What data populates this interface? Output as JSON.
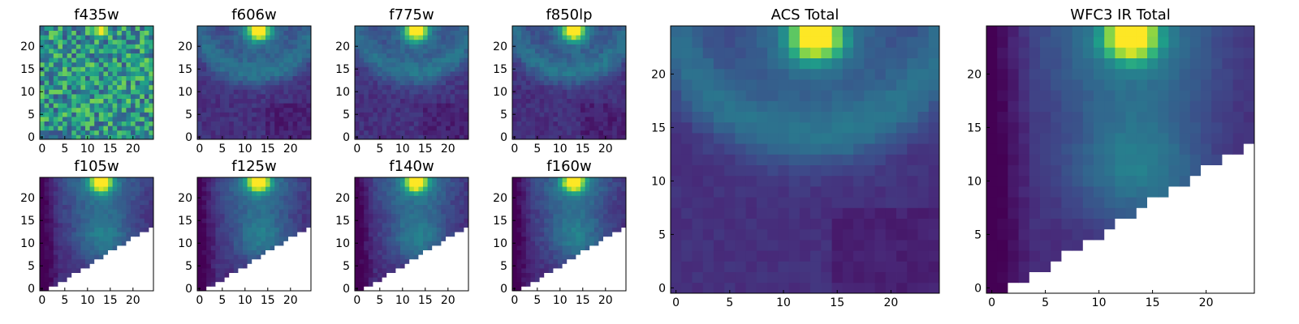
{
  "colormap": "viridis",
  "colors": {
    "viridis": [
      "#440154",
      "#482878",
      "#3e4989",
      "#31688e",
      "#26828e",
      "#1f9e89",
      "#35b779",
      "#6ece58",
      "#b5de2b",
      "#fde725"
    ],
    "masked_background": "#ffffff",
    "axes_frame": "#000000"
  },
  "chart_data": [
    {
      "type": "heatmap",
      "title": "f435w",
      "grid": false,
      "pattern": "noise",
      "masked_region": "none",
      "peak_x": 13,
      "peak_y": 23.5,
      "xlim": [
        -0.5,
        24.5
      ],
      "ylim": [
        -0.5,
        24.5
      ],
      "xticks": [
        0,
        5,
        10,
        15,
        20
      ],
      "yticks": [
        0,
        5,
        10,
        15,
        20
      ]
    },
    {
      "type": "heatmap",
      "title": "f606w",
      "grid": false,
      "pattern": "arc",
      "masked_region": "none",
      "peak_x": 13,
      "peak_y": 23.5,
      "xlim": [
        -0.5,
        24.5
      ],
      "ylim": [
        -0.5,
        24.5
      ],
      "xticks": [
        0,
        5,
        10,
        15,
        20
      ],
      "yticks": [
        0,
        5,
        10,
        15,
        20
      ]
    },
    {
      "type": "heatmap",
      "title": "f775w",
      "grid": false,
      "pattern": "arc",
      "masked_region": "none",
      "peak_x": 13,
      "peak_y": 23.5,
      "xlim": [
        -0.5,
        24.5
      ],
      "ylim": [
        -0.5,
        24.5
      ],
      "xticks": [
        0,
        5,
        10,
        15,
        20
      ],
      "yticks": [
        0,
        5,
        10,
        15,
        20
      ]
    },
    {
      "type": "heatmap",
      "title": "f850lp",
      "grid": false,
      "pattern": "arc",
      "masked_region": "none",
      "peak_x": 13,
      "peak_y": 23.5,
      "xlim": [
        -0.5,
        24.5
      ],
      "ylim": [
        -0.5,
        24.5
      ],
      "xticks": [
        0,
        5,
        10,
        15,
        20
      ],
      "yticks": [
        0,
        5,
        10,
        15,
        20
      ]
    },
    {
      "type": "heatmap",
      "title": "ACS Total",
      "grid": false,
      "pattern": "arc-smooth",
      "masked_region": "none",
      "peak_x": 13,
      "peak_y": 23.5,
      "xlim": [
        -0.5,
        24.5
      ],
      "ylim": [
        -0.5,
        24.5
      ],
      "xticks": [
        0,
        5,
        10,
        15,
        20
      ],
      "yticks": [
        0,
        5,
        10,
        15,
        20
      ]
    },
    {
      "type": "heatmap",
      "title": "f105w",
      "grid": false,
      "pattern": "ir",
      "masked_region": "lower-right wedge",
      "peak_x": 13,
      "peak_y": 23.5,
      "xlim": [
        -0.5,
        24.5
      ],
      "ylim": [
        -0.5,
        24.5
      ],
      "xticks": [
        0,
        5,
        10,
        15,
        20
      ],
      "yticks": [
        0,
        5,
        10,
        15,
        20
      ]
    },
    {
      "type": "heatmap",
      "title": "f125w",
      "grid": false,
      "pattern": "ir",
      "masked_region": "lower-right wedge",
      "peak_x": 13,
      "peak_y": 23.5,
      "xlim": [
        -0.5,
        24.5
      ],
      "ylim": [
        -0.5,
        24.5
      ],
      "xticks": [
        0,
        5,
        10,
        15,
        20
      ],
      "yticks": [
        0,
        5,
        10,
        15,
        20
      ]
    },
    {
      "type": "heatmap",
      "title": "f140w",
      "grid": false,
      "pattern": "ir",
      "masked_region": "lower-right wedge",
      "peak_x": 13,
      "peak_y": 23.5,
      "xlim": [
        -0.5,
        24.5
      ],
      "ylim": [
        -0.5,
        24.5
      ],
      "xticks": [
        0,
        5,
        10,
        15,
        20
      ],
      "yticks": [
        0,
        5,
        10,
        15,
        20
      ]
    },
    {
      "type": "heatmap",
      "title": "f160w",
      "grid": false,
      "pattern": "ir",
      "masked_region": "lower-right wedge",
      "peak_x": 13,
      "peak_y": 23.5,
      "xlim": [
        -0.5,
        24.5
      ],
      "ylim": [
        -0.5,
        24.5
      ],
      "xticks": [
        0,
        5,
        10,
        15,
        20
      ],
      "yticks": [
        0,
        5,
        10,
        15,
        20
      ]
    },
    {
      "type": "heatmap",
      "title": "WFC3 IR Total",
      "grid": false,
      "pattern": "ir-smooth",
      "masked_region": "lower-right wedge",
      "peak_x": 13,
      "peak_y": 23.5,
      "xlim": [
        -0.5,
        24.5
      ],
      "ylim": [
        -0.5,
        24.5
      ],
      "xticks": [
        0,
        5,
        10,
        15,
        20
      ],
      "yticks": [
        0,
        5,
        10,
        15,
        20
      ]
    }
  ]
}
